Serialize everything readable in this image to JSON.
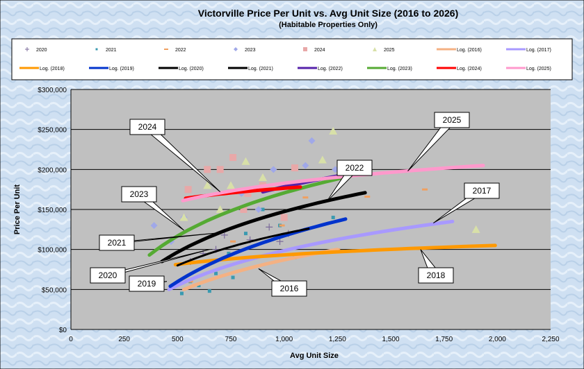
{
  "chart_data": {
    "type": "scatter",
    "title": "Victorville Price Per Unit vs. Avg Unit Size (2016 to 2026)",
    "subtitle": "(Habitable Properties Only)",
    "xlabel": "Avg Unit Size",
    "ylabel": "Price Per Unit",
    "xlim": [
      0,
      2250
    ],
    "ylim": [
      0,
      300000
    ],
    "grid": true,
    "legend_position": "top",
    "x_ticks": [
      "0",
      "250",
      "500",
      "750",
      "1,000",
      "1,250",
      "1,500",
      "1,750",
      "2,000",
      "2,250"
    ],
    "y_ticks": [
      "$0",
      "$50,000",
      "$100,000",
      "$150,000",
      "$200,000",
      "$250,000",
      "$300,000"
    ],
    "legend": [
      "2020",
      "2021",
      "2022",
      "2023",
      "2024",
      "2025",
      "Log. (2016)",
      "Log. (2017)",
      "Log. (2018)",
      "Log. (2019)",
      "Log. (2020)",
      "Log. (2021)",
      "Log. (2022)",
      "Log. (2023)",
      "Log. (2024)",
      "Log. (2025)"
    ],
    "scatter_series": [
      {
        "name": "2020",
        "marker": "plus",
        "color": "#7a6a9a",
        "points": [
          [
            560,
            85000
          ],
          [
            620,
            95000
          ],
          [
            720,
            118000
          ],
          [
            840,
            112000
          ],
          [
            930,
            128000
          ],
          [
            980,
            110000
          ],
          [
            680,
            100000
          ],
          [
            1020,
            120000
          ]
        ]
      },
      {
        "name": "2021",
        "marker": "square-small",
        "color": "#3a9ab0",
        "points": [
          [
            520,
            45000
          ],
          [
            600,
            55000
          ],
          [
            680,
            70000
          ],
          [
            740,
            95000
          ],
          [
            820,
            120000
          ],
          [
            900,
            150000
          ],
          [
            980,
            130000
          ],
          [
            1050,
            90000
          ],
          [
            1230,
            140000
          ],
          [
            560,
            60000
          ],
          [
            650,
            48000
          ],
          [
            760,
            65000
          ]
        ]
      },
      {
        "name": "2022",
        "marker": "dash",
        "color": "#f0a060",
        "points": [
          [
            560,
            60000
          ],
          [
            760,
            110000
          ],
          [
            990,
            130000
          ],
          [
            1100,
            165000
          ],
          [
            1250,
            100000
          ],
          [
            1390,
            166000
          ],
          [
            1530,
            125000
          ],
          [
            1660,
            175000
          ]
        ]
      },
      {
        "name": "2023",
        "marker": "diamond",
        "color": "#a0a8e8",
        "points": [
          [
            390,
            130000
          ],
          [
            470,
            110000
          ],
          [
            530,
            140000
          ],
          [
            800,
            170000
          ],
          [
            950,
            200000
          ],
          [
            1100,
            205000
          ],
          [
            1130,
            236000
          ],
          [
            1240,
            200000
          ],
          [
            880,
            150000
          ]
        ]
      },
      {
        "name": "2024",
        "marker": "square",
        "color": "#e8a8a8",
        "points": [
          [
            550,
            175000
          ],
          [
            640,
            200000
          ],
          [
            700,
            200000
          ],
          [
            760,
            215000
          ],
          [
            830,
            170000
          ],
          [
            900,
            180000
          ],
          [
            1000,
            140000
          ],
          [
            1050,
            202000
          ],
          [
            810,
            150000
          ]
        ]
      },
      {
        "name": "2025",
        "marker": "triangle",
        "color": "#d8e0a8",
        "points": [
          [
            530,
            140000
          ],
          [
            640,
            180000
          ],
          [
            750,
            180000
          ],
          [
            820,
            210000
          ],
          [
            900,
            190000
          ],
          [
            1180,
            212000
          ],
          [
            1230,
            248000
          ],
          [
            1900,
            125000
          ],
          [
            700,
            150000
          ]
        ]
      }
    ],
    "trendlines": [
      {
        "name": "Log. (2016)",
        "label": "2016",
        "color": "#f4b183",
        "x": [
          530,
          1250
        ],
        "y": [
          50000,
          100000
        ]
      },
      {
        "name": "Log. (2017)",
        "label": "2017",
        "color": "#a899ff",
        "x": [
          460,
          1790
        ],
        "y": [
          50000,
          135000
        ]
      },
      {
        "name": "Log. (2018)",
        "label": "2018",
        "color": "#ff9900",
        "x": [
          490,
          1990
        ],
        "y": [
          81000,
          105000
        ]
      },
      {
        "name": "Log. (2019)",
        "label": "2019",
        "color": "#0033cc",
        "x": [
          466,
          1288
        ],
        "y": [
          54000,
          138000
        ]
      },
      {
        "name": "Log. (2020)",
        "label": "2020",
        "color": "#000000",
        "x": [
          500,
          1115
        ],
        "y": [
          80000,
          126000
        ]
      },
      {
        "name": "Log. (2021)",
        "label": "2021",
        "color": "#000000",
        "x": [
          427,
          1380
        ],
        "y": [
          85000,
          171000
        ]
      },
      {
        "name": "Log. (2022)",
        "label": "2022",
        "color": "#5522aa",
        "x": [
          900,
          1275
        ],
        "y": [
          172000,
          193000
        ]
      },
      {
        "name": "Log. (2023)",
        "label": "2023",
        "color": "#55aa33",
        "x": [
          368,
          1282
        ],
        "y": [
          93000,
          190000
        ]
      },
      {
        "name": "Log. (2024)",
        "label": "2024",
        "color": "#ff0000",
        "x": [
          538,
          1076
        ],
        "y": [
          164000,
          178000
        ]
      },
      {
        "name": "Log. (2025)",
        "label": "2025",
        "color": "#ff99cc",
        "x": [
          525,
          1934
        ],
        "y": [
          161000,
          205000
        ]
      }
    ],
    "callouts": [
      {
        "text": "2024",
        "target": [
          700,
          172000
        ]
      },
      {
        "text": "2025",
        "target": [
          1580,
          198000
        ]
      },
      {
        "text": "2022",
        "target": [
          1200,
          160000
        ]
      },
      {
        "text": "2023",
        "target": [
          530,
          124000
        ]
      },
      {
        "text": "2017",
        "target": [
          1700,
          133000
        ]
      },
      {
        "text": "2021",
        "target": [
          700,
          121000
        ]
      },
      {
        "text": "2020",
        "target": [
          650,
          100000
        ]
      },
      {
        "text": "2019",
        "target": [
          450,
          60000
        ]
      },
      {
        "text": "2016",
        "target": [
          880,
          76000
        ]
      },
      {
        "text": "2018",
        "target": [
          1640,
          100000
        ]
      }
    ]
  }
}
